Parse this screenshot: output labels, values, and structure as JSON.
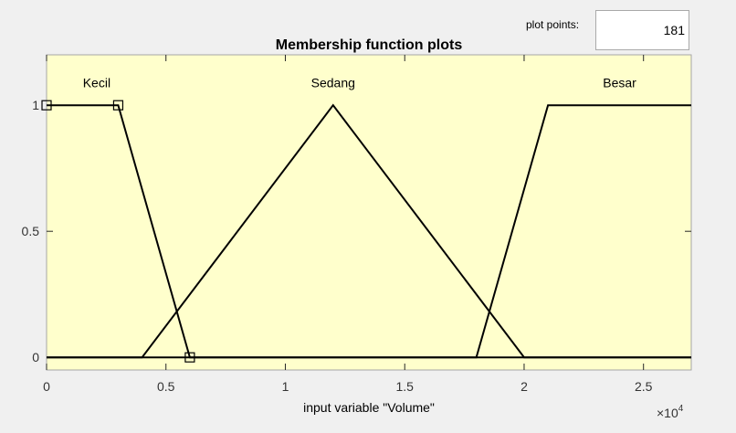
{
  "plot_points": {
    "label": "plot points:",
    "value": "181"
  },
  "chart_data": {
    "type": "line",
    "title": "Membership function plots",
    "xlabel": "input variable \"Volume\"",
    "ylabel": "",
    "xlim": [
      0,
      27000
    ],
    "ylim": [
      -0.05,
      1.2
    ],
    "x_exponent_label": "×10",
    "x_exponent": "4",
    "x_ticks": [
      0,
      5000,
      10000,
      15000,
      20000,
      25000
    ],
    "x_tick_labels": [
      "0",
      "0.5",
      "1",
      "1.5",
      "2",
      "2.5"
    ],
    "y_ticks": [
      0,
      0.5,
      1
    ],
    "y_tick_labels": [
      "0",
      "0.5",
      "1"
    ],
    "background": "#ffffcc",
    "line_color": "#000000",
    "series": [
      {
        "name": "Kecil",
        "x": [
          0,
          3000,
          6000,
          27000
        ],
        "y": [
          1,
          1,
          0,
          0
        ],
        "markers": true,
        "label_at": [
          2100,
          1.09
        ]
      },
      {
        "name": "Sedang",
        "x": [
          0,
          4000,
          12000,
          20000,
          27000
        ],
        "y": [
          0,
          0,
          1,
          0,
          0
        ],
        "markers": false,
        "label_at": [
          12000,
          1.09
        ]
      },
      {
        "name": "Besar",
        "x": [
          0,
          18000,
          21000,
          27000
        ],
        "y": [
          0,
          0,
          1,
          1
        ],
        "markers": false,
        "label_at": [
          24000,
          1.09
        ]
      }
    ]
  }
}
